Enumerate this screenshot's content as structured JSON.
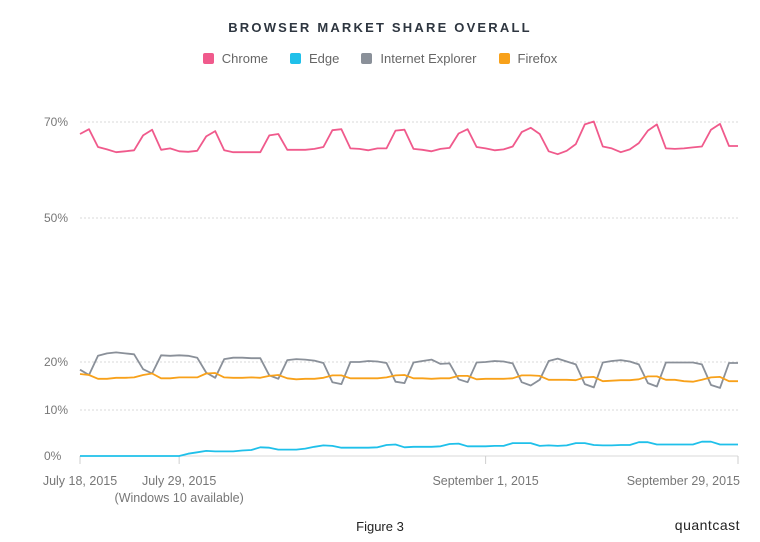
{
  "chart_data": {
    "type": "line",
    "title": "BROWSER MARKET SHARE OVERALL",
    "xlabel": "",
    "ylabel": "",
    "ylim": [
      0,
      75
    ],
    "y_ticks": [
      "0%",
      "10%",
      "20%",
      "50%",
      "70%"
    ],
    "y_tick_values": [
      0,
      10,
      20,
      50,
      70
    ],
    "grid": true,
    "legend_position": "top-center",
    "x_tick_labels": [
      {
        "label": "July 18, 2015",
        "index": 0
      },
      {
        "label": "July 29, 2015",
        "sublabel": "(Windows 10 available)",
        "index": 11
      },
      {
        "label": "September 1, 2015",
        "index": 45
      },
      {
        "label": "September 29, 2015",
        "index": 73
      }
    ],
    "x": [
      "2015-07-18",
      "2015-07-19",
      "2015-07-20",
      "2015-07-21",
      "2015-07-22",
      "2015-07-23",
      "2015-07-24",
      "2015-07-25",
      "2015-07-26",
      "2015-07-27",
      "2015-07-28",
      "2015-07-29",
      "2015-07-30",
      "2015-07-31",
      "2015-08-01",
      "2015-08-02",
      "2015-08-03",
      "2015-08-04",
      "2015-08-05",
      "2015-08-06",
      "2015-08-07",
      "2015-08-08",
      "2015-08-09",
      "2015-08-10",
      "2015-08-11",
      "2015-08-12",
      "2015-08-13",
      "2015-08-14",
      "2015-08-15",
      "2015-08-16",
      "2015-08-17",
      "2015-08-18",
      "2015-08-19",
      "2015-08-20",
      "2015-08-21",
      "2015-08-22",
      "2015-08-23",
      "2015-08-24",
      "2015-08-25",
      "2015-08-26",
      "2015-08-27",
      "2015-08-28",
      "2015-08-29",
      "2015-08-30",
      "2015-08-31",
      "2015-09-01",
      "2015-09-02",
      "2015-09-03",
      "2015-09-04",
      "2015-09-05",
      "2015-09-06",
      "2015-09-07",
      "2015-09-08",
      "2015-09-09",
      "2015-09-10",
      "2015-09-11",
      "2015-09-12",
      "2015-09-13",
      "2015-09-14",
      "2015-09-15",
      "2015-09-16",
      "2015-09-17",
      "2015-09-18",
      "2015-09-19",
      "2015-09-20",
      "2015-09-21",
      "2015-09-22",
      "2015-09-23",
      "2015-09-24",
      "2015-09-25",
      "2015-09-26",
      "2015-09-27",
      "2015-09-28",
      "2015-09-29"
    ],
    "series": [
      {
        "name": "Chrome",
        "color": "#f05a8c",
        "values": [
          67.5,
          68.5,
          64.8,
          64.3,
          63.7,
          63.9,
          64.1,
          67.2,
          68.4,
          64.2,
          64.5,
          63.9,
          63.8,
          64.0,
          67.0,
          68.1,
          64.1,
          63.7,
          63.7,
          63.7,
          63.7,
          67.2,
          67.5,
          64.2,
          64.2,
          64.2,
          64.4,
          64.8,
          68.3,
          68.5,
          64.5,
          64.4,
          64.1,
          64.5,
          64.5,
          68.2,
          68.4,
          64.4,
          64.2,
          63.9,
          64.4,
          64.6,
          67.6,
          68.5,
          64.8,
          64.5,
          64.1,
          64.3,
          64.9,
          67.9,
          68.8,
          67.5,
          63.9,
          63.3,
          64.0,
          65.4,
          69.5,
          70.1,
          64.9,
          64.5,
          63.7,
          64.3,
          65.6,
          68.2,
          69.5,
          64.5,
          64.4,
          64.5,
          64.7,
          64.9,
          68.4,
          69.6,
          65.0,
          65.0
        ]
      },
      {
        "name": "Edge",
        "color": "#1fc0ea",
        "values": [
          0,
          0,
          0,
          0,
          0,
          0,
          0,
          0,
          0,
          0,
          0,
          0,
          0.5,
          0.8,
          1.1,
          1.0,
          1.0,
          1.0,
          1.2,
          1.3,
          1.9,
          1.8,
          1.4,
          1.4,
          1.4,
          1.6,
          2.0,
          2.3,
          2.2,
          1.8,
          1.8,
          1.8,
          1.8,
          1.9,
          2.4,
          2.5,
          1.9,
          2.0,
          2.0,
          2.0,
          2.1,
          2.6,
          2.7,
          2.1,
          2.1,
          2.1,
          2.2,
          2.2,
          2.8,
          2.8,
          2.8,
          2.2,
          2.3,
          2.2,
          2.3,
          2.8,
          2.8,
          2.4,
          2.3,
          2.3,
          2.4,
          2.4,
          3.0,
          3.0,
          2.5,
          2.5,
          2.5,
          2.5,
          2.5,
          3.1,
          3.1,
          2.5,
          2.5,
          2.5
        ]
      },
      {
        "name": "Internet Explorer",
        "color": "#8a9099",
        "values": [
          18.4,
          17.3,
          21.3,
          21.8,
          22.0,
          21.8,
          21.6,
          18.5,
          17.6,
          21.4,
          21.3,
          21.4,
          21.3,
          20.9,
          17.8,
          16.7,
          20.6,
          20.9,
          20.9,
          20.8,
          20.8,
          17.2,
          16.5,
          20.4,
          20.6,
          20.5,
          20.3,
          19.8,
          15.8,
          15.4,
          20.0,
          20.0,
          20.2,
          20.1,
          19.8,
          15.9,
          15.6,
          19.9,
          20.2,
          20.5,
          19.6,
          19.7,
          16.4,
          15.8,
          19.9,
          20.0,
          20.2,
          20.1,
          19.7,
          15.8,
          15.1,
          16.3,
          20.2,
          20.7,
          20.1,
          19.5,
          15.4,
          14.7,
          19.9,
          20.2,
          20.4,
          20.1,
          19.5,
          15.6,
          14.9,
          19.9,
          19.9,
          19.9,
          19.9,
          19.5,
          15.2,
          14.6,
          19.8,
          19.8
        ]
      },
      {
        "name": "Firefox",
        "color": "#f8a11a",
        "values": [
          17.5,
          17.3,
          16.5,
          16.5,
          16.7,
          16.7,
          16.8,
          17.3,
          17.6,
          16.6,
          16.6,
          16.8,
          16.8,
          16.8,
          17.6,
          17.7,
          16.8,
          16.7,
          16.7,
          16.8,
          16.7,
          17.1,
          17.3,
          16.6,
          16.4,
          16.5,
          16.5,
          16.7,
          17.2,
          17.2,
          16.6,
          16.6,
          16.6,
          16.6,
          16.8,
          17.2,
          17.3,
          16.6,
          16.6,
          16.5,
          16.6,
          16.6,
          17.1,
          17.1,
          16.4,
          16.5,
          16.5,
          16.5,
          16.6,
          17.2,
          17.2,
          17.1,
          16.3,
          16.3,
          16.3,
          16.2,
          16.8,
          16.9,
          16.0,
          16.1,
          16.2,
          16.2,
          16.4,
          17.0,
          17.0,
          16.3,
          16.3,
          16.0,
          15.9,
          16.3,
          16.8,
          16.9,
          16.0,
          16.0
        ]
      }
    ]
  },
  "caption": "Figure 3",
  "brand": "quantcast"
}
